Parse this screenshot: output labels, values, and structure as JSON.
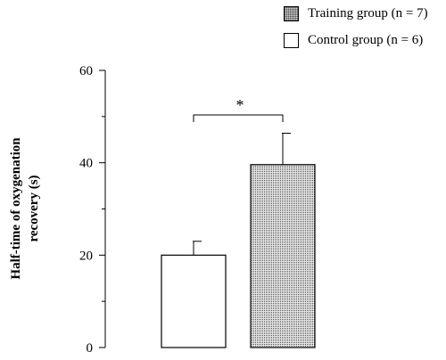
{
  "chart_data": {
    "type": "bar",
    "categories": [
      "Control group (n = 6)",
      "Training group (n = 7)"
    ],
    "values": [
      20,
      39.6
    ],
    "errors": [
      3,
      6.8
    ],
    "ylabel": "Half-time of oxygenation recovery (s)",
    "ylim": [
      0,
      60
    ],
    "yticks": [
      "0",
      "20",
      "40",
      "60"
    ],
    "legend": [
      "Training group (n = 7)",
      "Control group (n = 6)"
    ],
    "legend_position": "top-right",
    "annotation": "*",
    "grid": false,
    "colors": {
      "control": "#ffffff",
      "training": "#d8d8d8",
      "stroke": "#000000"
    }
  }
}
